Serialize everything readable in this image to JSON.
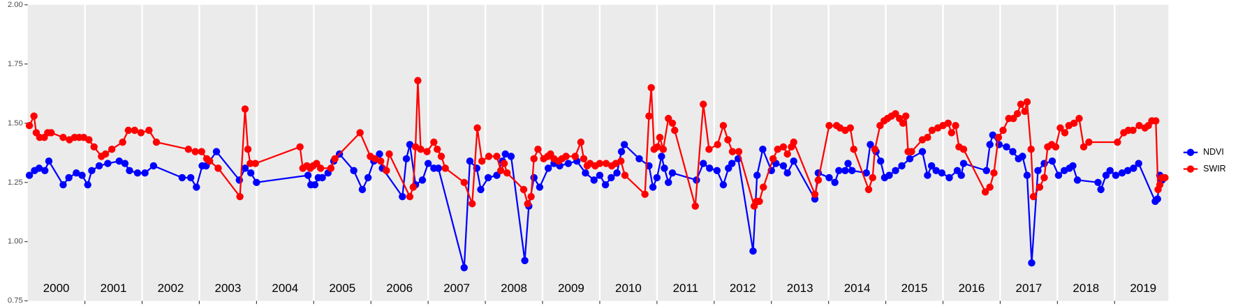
{
  "chart_data": {
    "type": "line",
    "xlim": [
      2000,
      2019.94
    ],
    "ylim": [
      0.75,
      2.0
    ],
    "yticks": [
      0.75,
      {
        "value": 1.0,
        "label": "1.00"
      },
      1.25,
      {
        "value": 1.5,
        "label": "1.50"
      },
      1.75,
      {
        "value": 2.0,
        "label": "2.00"
      }
    ],
    "xticks": [
      2001,
      2002,
      2003,
      2004,
      2005,
      2006,
      2007,
      2008,
      2009,
      2010,
      2011,
      2012,
      2013,
      2014,
      2015,
      2016,
      2017,
      2018,
      2019
    ],
    "year_labels": [
      "2000",
      "2001",
      "2002",
      "2003",
      "2004",
      "2005",
      "2006",
      "2007",
      "2008",
      "2009",
      "2010",
      "2011",
      "2012",
      "2013",
      "2014",
      "2015",
      "2016",
      "2017",
      "2018",
      "2019"
    ],
    "grid": true,
    "legend": "right",
    "series": [
      {
        "name": "NDVI",
        "color": "#0000ff",
        "x": [
          2000.03,
          2000.12,
          2000.2,
          2000.3,
          2000.37,
          2000.62,
          2000.72,
          2000.85,
          2000.95,
          2001.05,
          2001.12,
          2001.25,
          2001.4,
          2001.6,
          2001.7,
          2001.78,
          2001.92,
          2002.05,
          2002.2,
          2002.7,
          2002.85,
          2002.95,
          2003.05,
          2003.12,
          2003.3,
          2003.7,
          2003.8,
          2003.9,
          2004.0,
          2004.9,
          2004.95,
          2005.02,
          2005.08,
          2005.15,
          2005.25,
          2005.35,
          2005.45,
          2005.7,
          2005.85,
          2005.95,
          2006.05,
          2006.15,
          2006.2,
          2006.55,
          2006.62,
          2006.68,
          2006.78,
          2006.9,
          2007.0,
          2007.1,
          2007.18,
          2007.63,
          2007.73,
          2007.85,
          2007.92,
          2008.05,
          2008.2,
          2008.3,
          2008.35,
          2008.45,
          2008.69,
          2008.76,
          2008.85,
          2008.95,
          2009.1,
          2009.2,
          2009.3,
          2009.45,
          2009.6,
          2009.75,
          2009.9,
          2010.0,
          2010.1,
          2010.2,
          2010.3,
          2010.38,
          2010.43,
          2010.69,
          2010.86,
          2010.93,
          2011.0,
          2011.08,
          2011.13,
          2011.2,
          2011.27,
          2011.69,
          2011.81,
          2011.92,
          2012.05,
          2012.16,
          2012.25,
          2012.31,
          2012.42,
          2012.68,
          2012.75,
          2012.85,
          2013.0,
          2013.08,
          2013.21,
          2013.28,
          2013.39,
          2013.76,
          2013.82,
          2014.01,
          2014.11,
          2014.18,
          2014.29,
          2014.34,
          2014.41,
          2014.66,
          2014.73,
          2014.83,
          2014.91,
          2014.98,
          2015.06,
          2015.17,
          2015.28,
          2015.42,
          2015.64,
          2015.73,
          2015.8,
          2015.88,
          2015.98,
          2016.11,
          2016.25,
          2016.32,
          2016.36,
          2016.76,
          2016.82,
          2016.87,
          2016.98,
          2017.11,
          2017.22,
          2017.32,
          2017.39,
          2017.47,
          2017.55,
          2017.66,
          2017.77,
          2017.91,
          2018.02,
          2018.12,
          2018.21,
          2018.27,
          2018.35,
          2018.71,
          2018.76,
          2018.85,
          2018.92,
          2019.02,
          2019.13,
          2019.23,
          2019.33,
          2019.42,
          2019.71,
          2019.75,
          2019.79,
          2019.83
        ],
        "values": [
          1.28,
          1.3,
          1.31,
          1.3,
          1.34,
          1.24,
          1.27,
          1.29,
          1.28,
          1.24,
          1.3,
          1.32,
          1.33,
          1.34,
          1.33,
          1.3,
          1.29,
          1.29,
          1.32,
          1.27,
          1.27,
          1.23,
          1.32,
          1.32,
          1.38,
          1.26,
          1.31,
          1.29,
          1.25,
          1.28,
          1.24,
          1.24,
          1.27,
          1.27,
          1.29,
          1.34,
          1.37,
          1.3,
          1.22,
          1.27,
          1.34,
          1.37,
          1.31,
          1.19,
          1.35,
          1.41,
          1.24,
          1.26,
          1.33,
          1.31,
          1.31,
          0.89,
          1.34,
          1.31,
          1.22,
          1.27,
          1.28,
          1.34,
          1.37,
          1.36,
          0.92,
          1.15,
          1.27,
          1.23,
          1.31,
          1.33,
          1.32,
          1.33,
          1.34,
          1.29,
          1.26,
          1.28,
          1.24,
          1.27,
          1.29,
          1.38,
          1.41,
          1.35,
          1.32,
          1.23,
          1.27,
          1.36,
          1.31,
          1.25,
          1.29,
          1.26,
          1.33,
          1.31,
          1.3,
          1.24,
          1.31,
          1.33,
          1.35,
          0.96,
          1.28,
          1.39,
          1.3,
          1.33,
          1.32,
          1.29,
          1.34,
          1.18,
          1.29,
          1.27,
          1.25,
          1.3,
          1.3,
          1.33,
          1.3,
          1.29,
          1.41,
          1.38,
          1.34,
          1.27,
          1.28,
          1.3,
          1.32,
          1.35,
          1.38,
          1.28,
          1.32,
          1.3,
          1.29,
          1.27,
          1.3,
          1.28,
          1.33,
          1.3,
          1.41,
          1.45,
          1.41,
          1.4,
          1.38,
          1.35,
          1.36,
          1.28,
          0.91,
          1.3,
          1.33,
          1.34,
          1.28,
          1.3,
          1.31,
          1.32,
          1.26,
          1.25,
          1.22,
          1.28,
          1.3,
          1.28,
          1.29,
          1.3,
          1.31,
          1.33,
          1.17,
          1.18,
          1.28,
          1.26
        ]
      },
      {
        "name": "SWIR",
        "color": "#ff0000",
        "x": [
          2000.03,
          2000.11,
          2000.15,
          2000.21,
          2000.29,
          2000.35,
          2000.41,
          2000.62,
          2000.73,
          2000.82,
          2000.9,
          2000.98,
          2001.07,
          2001.16,
          2001.29,
          2001.36,
          2001.47,
          2001.66,
          2001.76,
          2001.87,
          2001.98,
          2002.12,
          2002.25,
          2002.81,
          2002.93,
          2003.04,
          2003.13,
          2003.18,
          2003.33,
          2003.71,
          2003.8,
          2003.85,
          2003.89,
          2003.98,
          2004.76,
          2004.81,
          2004.88,
          2004.94,
          2004.99,
          2005.05,
          2005.12,
          2005.3,
          2005.37,
          2005.81,
          2005.99,
          2006.07,
          2006.17,
          2006.27,
          2006.32,
          2006.68,
          2006.74,
          2006.78,
          2006.82,
          2006.87,
          2006.98,
          2007.1,
          2007.16,
          2007.23,
          2007.3,
          2007.63,
          2007.77,
          2007.86,
          2007.94,
          2008.06,
          2008.2,
          2008.27,
          2008.33,
          2008.38,
          2008.67,
          2008.74,
          2008.8,
          2008.85,
          2008.92,
          2009.02,
          2009.09,
          2009.14,
          2009.2,
          2009.28,
          2009.34,
          2009.41,
          2009.57,
          2009.67,
          2009.72,
          2009.78,
          2009.83,
          2009.92,
          2010.0,
          2010.11,
          2010.21,
          2010.28,
          2010.37,
          2010.44,
          2010.79,
          2010.86,
          2010.9,
          2010.95,
          2011.01,
          2011.05,
          2011.11,
          2011.2,
          2011.27,
          2011.31,
          2011.67,
          2011.81,
          2011.91,
          2012.06,
          2012.16,
          2012.24,
          2012.32,
          2012.43,
          2012.7,
          2012.74,
          2012.79,
          2012.86,
          2013.03,
          2013.11,
          2013.21,
          2013.28,
          2013.35,
          2013.39,
          2013.76,
          2013.82,
          2014.01,
          2014.14,
          2014.2,
          2014.29,
          2014.38,
          2014.44,
          2014.7,
          2014.77,
          2014.81,
          2014.9,
          2014.97,
          2015.03,
          2015.1,
          2015.17,
          2015.24,
          2015.3,
          2015.35,
          2015.39,
          2015.45,
          2015.64,
          2015.73,
          2015.81,
          2015.91,
          2016.0,
          2016.09,
          2016.15,
          2016.22,
          2016.28,
          2016.36,
          2016.74,
          2016.82,
          2016.89,
          2016.97,
          2017.05,
          2017.15,
          2017.23,
          2017.3,
          2017.36,
          2017.43,
          2017.47,
          2017.54,
          2017.58,
          2017.69,
          2017.77,
          2017.83,
          2017.9,
          2017.97,
          2018.05,
          2018.13,
          2018.2,
          2018.29,
          2018.38,
          2018.46,
          2018.55,
          2019.05,
          2019.16,
          2019.24,
          2019.32,
          2019.43,
          2019.53,
          2019.59,
          2019.65,
          2019.72,
          2019.76,
          2019.79,
          2019.83,
          2019.88
        ],
        "values": [
          1.49,
          1.53,
          1.46,
          1.44,
          1.44,
          1.46,
          1.46,
          1.44,
          1.43,
          1.44,
          1.44,
          1.44,
          1.43,
          1.4,
          1.36,
          1.37,
          1.39,
          1.42,
          1.47,
          1.47,
          1.46,
          1.47,
          1.42,
          1.39,
          1.38,
          1.38,
          1.35,
          1.34,
          1.31,
          1.19,
          1.56,
          1.39,
          1.33,
          1.33,
          1.4,
          1.31,
          1.32,
          1.31,
          1.32,
          1.33,
          1.31,
          1.31,
          1.35,
          1.46,
          1.36,
          1.35,
          1.34,
          1.3,
          1.37,
          1.19,
          1.23,
          1.4,
          1.68,
          1.39,
          1.38,
          1.42,
          1.39,
          1.36,
          1.31,
          1.25,
          1.16,
          1.48,
          1.34,
          1.36,
          1.36,
          1.3,
          1.33,
          1.29,
          1.22,
          1.16,
          1.19,
          1.35,
          1.39,
          1.35,
          1.36,
          1.37,
          1.35,
          1.34,
          1.35,
          1.36,
          1.36,
          1.42,
          1.35,
          1.32,
          1.33,
          1.32,
          1.33,
          1.33,
          1.32,
          1.33,
          1.34,
          1.28,
          1.2,
          1.53,
          1.65,
          1.39,
          1.4,
          1.44,
          1.39,
          1.52,
          1.5,
          1.47,
          1.15,
          1.58,
          1.39,
          1.41,
          1.49,
          1.43,
          1.38,
          1.38,
          1.15,
          1.17,
          1.17,
          1.23,
          1.35,
          1.39,
          1.4,
          1.37,
          1.4,
          1.42,
          1.2,
          1.26,
          1.49,
          1.49,
          1.48,
          1.47,
          1.48,
          1.39,
          1.22,
          1.27,
          1.39,
          1.49,
          1.51,
          1.52,
          1.53,
          1.54,
          1.52,
          1.5,
          1.53,
          1.38,
          1.38,
          1.43,
          1.44,
          1.47,
          1.48,
          1.49,
          1.5,
          1.46,
          1.49,
          1.4,
          1.39,
          1.21,
          1.23,
          1.29,
          1.44,
          1.47,
          1.52,
          1.52,
          1.54,
          1.58,
          1.55,
          1.59,
          1.39,
          1.19,
          1.23,
          1.27,
          1.4,
          1.41,
          1.4,
          1.48,
          1.46,
          1.49,
          1.5,
          1.52,
          1.4,
          1.42,
          1.42,
          1.46,
          1.47,
          1.47,
          1.49,
          1.48,
          1.49,
          1.51,
          1.51,
          1.22,
          1.24,
          1.27,
          1.27
        ]
      }
    ]
  }
}
